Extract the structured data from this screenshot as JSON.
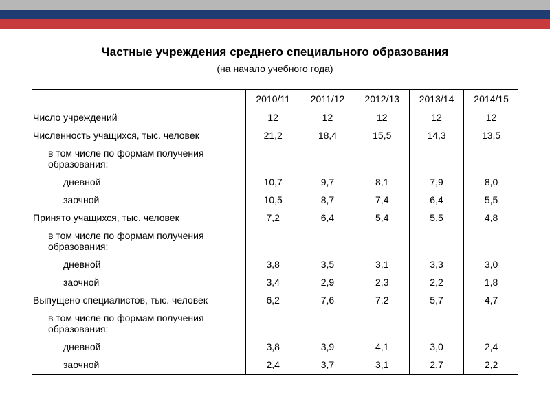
{
  "stripes": {
    "color_top": "#b8b7b7",
    "color_mid": "#1f3c73",
    "color_bot": "#c73a3e"
  },
  "heading": {
    "title": "Частные учреждения среднего специального образования",
    "subtitle": "(на начало учебного года)",
    "title_fontsize": 17,
    "subtitle_fontsize": 14,
    "title_weight": "bold"
  },
  "table": {
    "type": "table",
    "font_size": 14,
    "border_color": "#000000",
    "columns": [
      "",
      "2010/11",
      "2011/12",
      "2012/13",
      "2013/14",
      "2014/15"
    ],
    "column_widths_pct": [
      44,
      11.2,
      11.2,
      11.2,
      11.2,
      11.2
    ],
    "rows": [
      {
        "label": "Число учреждений",
        "indent": 0,
        "values": [
          "12",
          "12",
          "12",
          "12",
          "12"
        ]
      },
      {
        "label": "Численность учащихся, тыс. человек",
        "indent": 0,
        "values": [
          "21,2",
          "18,4",
          "15,5",
          "14,3",
          "13,5"
        ]
      },
      {
        "label": "в том числе по формам получения образования:",
        "indent": 1,
        "values": [
          "",
          "",
          "",
          "",
          ""
        ]
      },
      {
        "label": "дневной",
        "indent": 2,
        "values": [
          "10,7",
          "9,7",
          "8,1",
          "7,9",
          "8,0"
        ]
      },
      {
        "label": "заочной",
        "indent": 2,
        "values": [
          "10,5",
          "8,7",
          "7,4",
          "6,4",
          "5,5"
        ]
      },
      {
        "label": "Принято учащихся, тыс. человек",
        "indent": 0,
        "values": [
          "7,2",
          "6,4",
          "5,4",
          "5,5",
          "4,8"
        ]
      },
      {
        "label": "в том числе по формам получения образования:",
        "indent": 1,
        "values": [
          "",
          "",
          "",
          "",
          ""
        ]
      },
      {
        "label": "дневной",
        "indent": 2,
        "values": [
          "3,8",
          "3,5",
          "3,1",
          "3,3",
          "3,0"
        ]
      },
      {
        "label": "заочной",
        "indent": 2,
        "values": [
          "3,4",
          "2,9",
          "2,3",
          "2,2",
          "1,8"
        ]
      },
      {
        "label": "Выпущено специалистов, тыс. человек",
        "indent": 0,
        "values": [
          "6,2",
          "7,6",
          "7,2",
          "5,7",
          "4,7"
        ]
      },
      {
        "label": "в том числе по формам получения образования:",
        "indent": 1,
        "values": [
          "",
          "",
          "",
          "",
          ""
        ]
      },
      {
        "label": "дневной",
        "indent": 2,
        "values": [
          "3,8",
          "3,9",
          "4,1",
          "3,0",
          "2,4"
        ]
      },
      {
        "label": "заочной",
        "indent": 2,
        "values": [
          "2,4",
          "3,7",
          "3,1",
          "2,7",
          "2,2"
        ]
      }
    ]
  }
}
